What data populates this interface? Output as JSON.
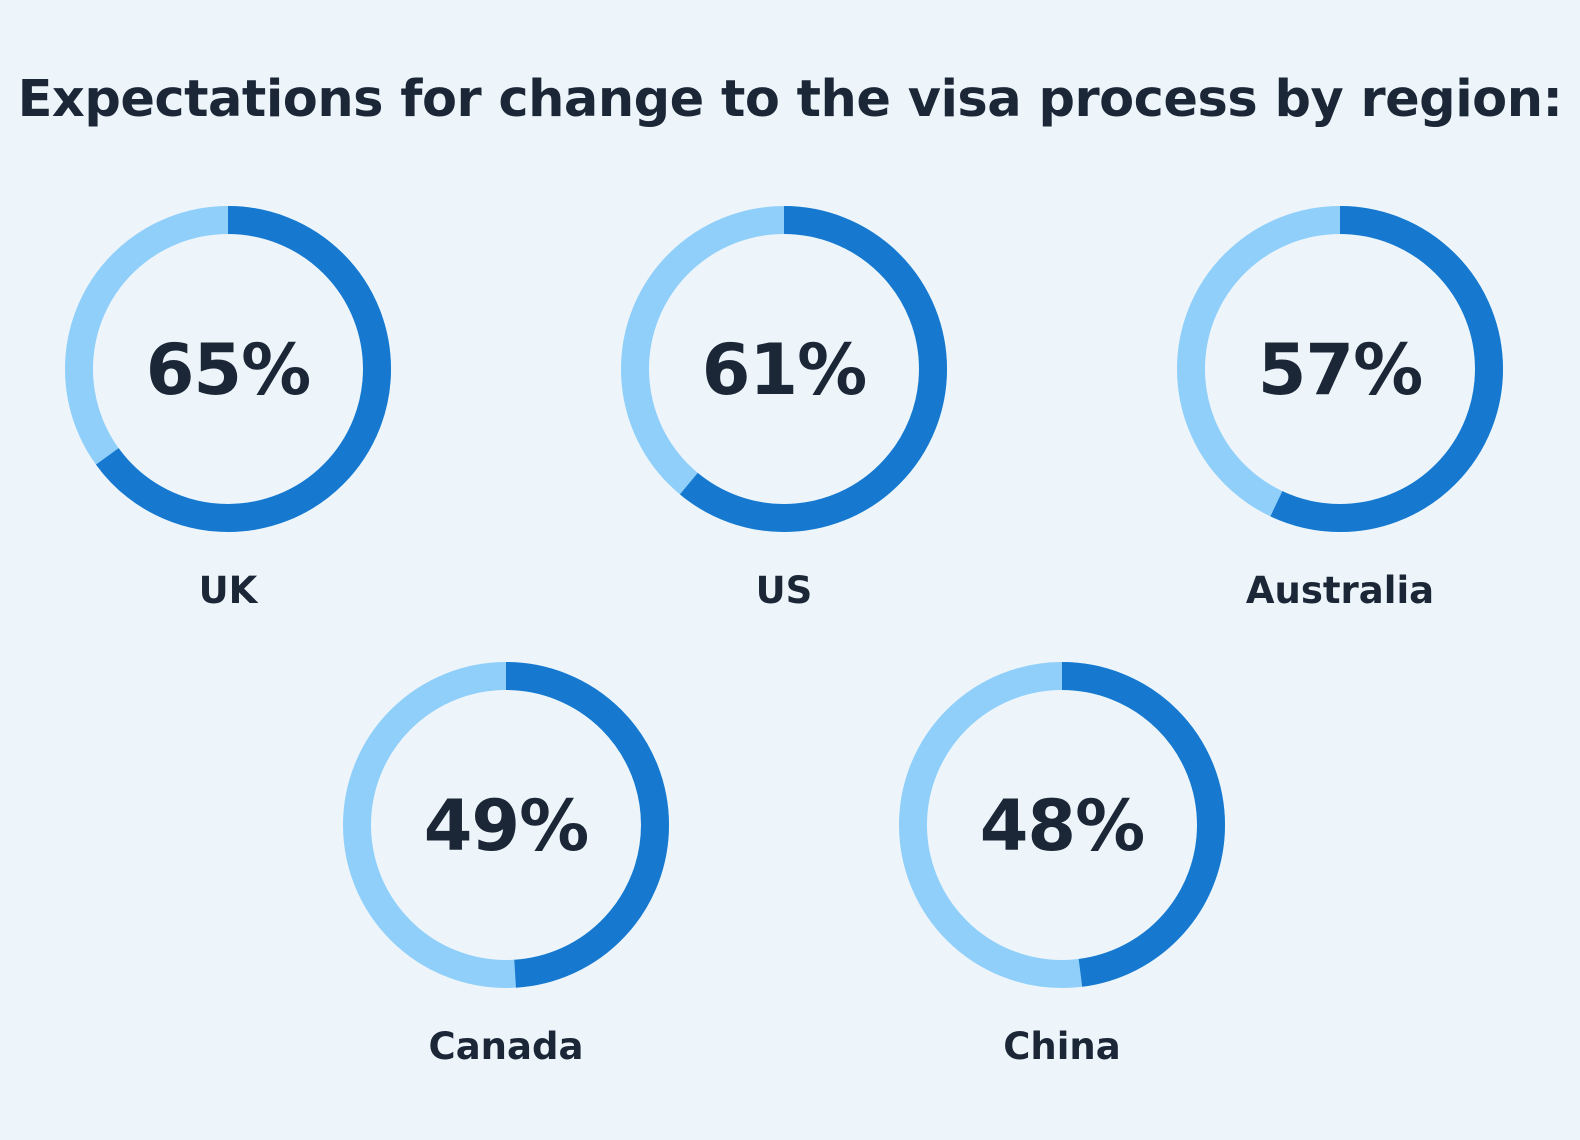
{
  "chart_data": {
    "type": "pie",
    "title": "Expectations for change to the visa process by region:",
    "colors": {
      "value": "#1679cf",
      "remainder": "#8fcffa",
      "text": "#1b2636",
      "background": "#edf5fb"
    },
    "items": [
      {
        "region": "UK",
        "value": 65,
        "label": "65%"
      },
      {
        "region": "US",
        "value": 61,
        "label": "61%"
      },
      {
        "region": "Australia",
        "value": 57,
        "label": "57%"
      },
      {
        "region": "Canada",
        "value": 49,
        "label": "49%"
      },
      {
        "region": "China",
        "value": 48,
        "label": "48%"
      }
    ]
  }
}
